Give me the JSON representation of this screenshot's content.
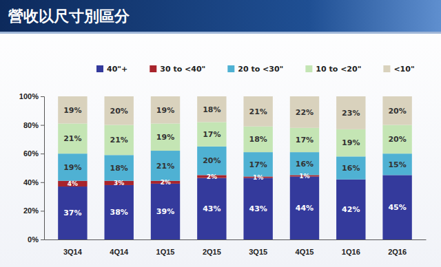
{
  "chart_data": {
    "type": "bar",
    "title": "營收以尺寸別區分",
    "categories": [
      "3Q14",
      "4Q14",
      "1Q15",
      "2Q15",
      "3Q15",
      "4Q15",
      "1Q16",
      "2Q16"
    ],
    "stacked": true,
    "data_labels": true,
    "grid": false,
    "legend": "top",
    "ylim": [
      0,
      100
    ],
    "yticks": [
      {
        "value": 0,
        "label": "0%"
      },
      {
        "value": 20,
        "label": "20%"
      },
      {
        "value": 40,
        "label": "40%"
      },
      {
        "value": 60,
        "label": "60%"
      },
      {
        "value": 80,
        "label": "80%"
      },
      {
        "value": 100,
        "label": "100%"
      }
    ],
    "series": [
      {
        "name": "40\"+",
        "color": "#343a9c",
        "values": [
          37,
          38,
          39,
          43,
          43,
          44,
          42,
          45
        ],
        "value_labels": [
          "37%",
          "38%",
          "39%",
          "43%",
          "43%",
          "44%",
          "42%",
          "45%"
        ]
      },
      {
        "name": "30 to <40\"",
        "color": "#a8242c",
        "values": [
          4,
          3,
          2,
          2,
          1,
          1,
          0,
          0
        ],
        "value_labels": [
          "4%",
          "3%",
          "2%",
          "2%",
          "1%",
          "1%",
          null,
          null
        ]
      },
      {
        "name": "20 to <30\"",
        "color": "#4fb1d3",
        "values": [
          19,
          18,
          21,
          20,
          17,
          16,
          16,
          15
        ],
        "value_labels": [
          "19%",
          "18%",
          "21%",
          "20%",
          "17%",
          "16%",
          "16%",
          "15%"
        ]
      },
      {
        "name": "10 to <20\"",
        "color": "#c4e5b4",
        "values": [
          21,
          21,
          19,
          17,
          18,
          17,
          19,
          20
        ],
        "value_labels": [
          "21%",
          "21%",
          "19%",
          "17%",
          "18%",
          "17%",
          "19%",
          "20%"
        ]
      },
      {
        "name": "<10\"",
        "color": "#d9d2bd",
        "values": [
          19,
          20,
          19,
          18,
          21,
          22,
          23,
          20
        ],
        "value_labels": [
          "19%",
          "20%",
          "19%",
          "18%",
          "21%",
          "22%",
          "23%",
          "20%"
        ]
      }
    ]
  }
}
